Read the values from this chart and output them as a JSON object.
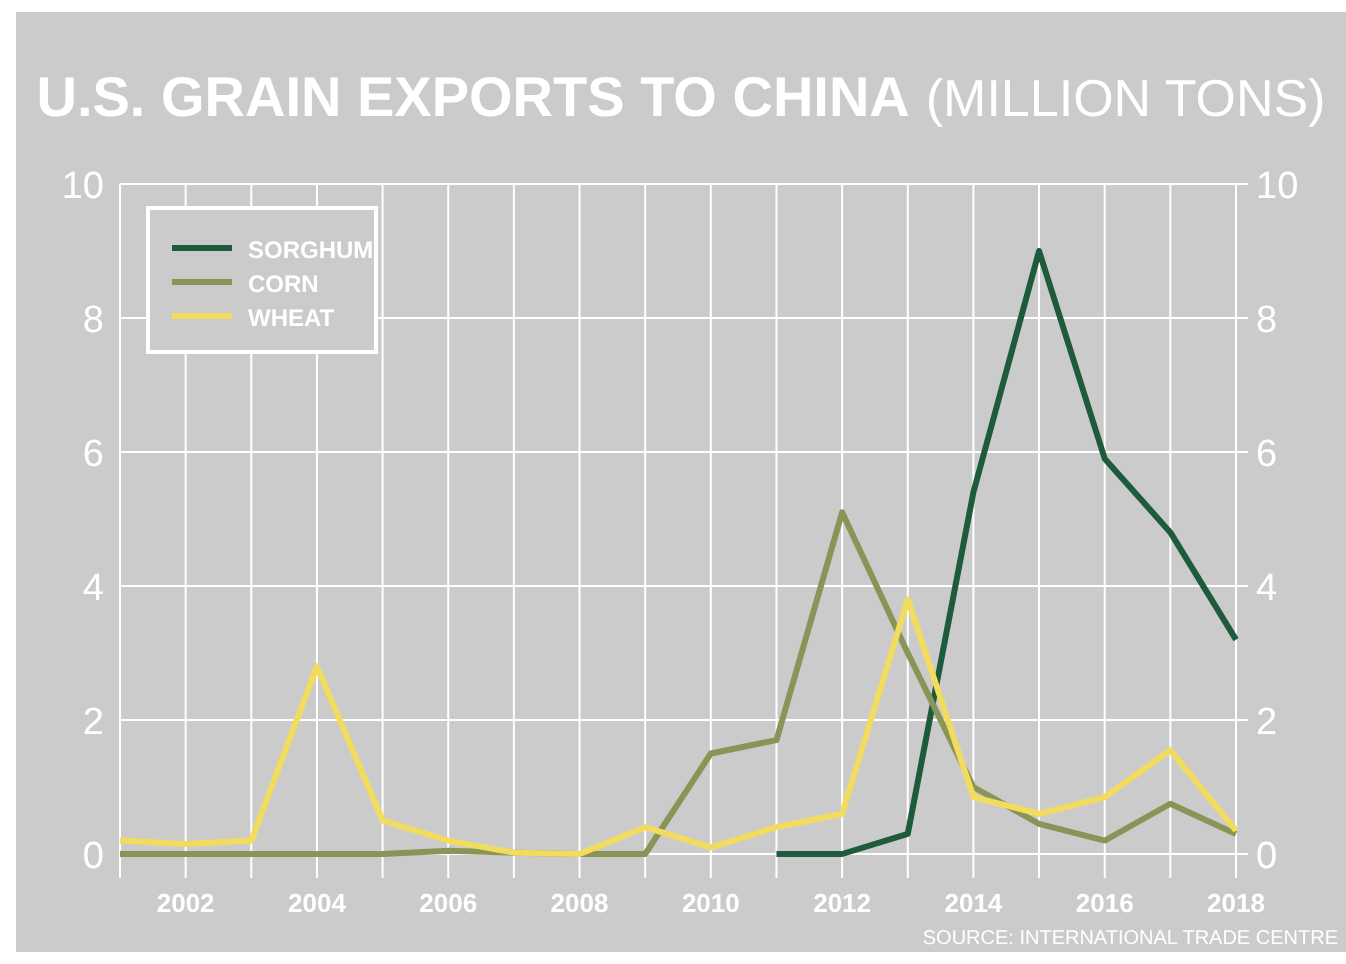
{
  "chart_data": {
    "type": "line",
    "title": "U.S. GRAIN EXPORTS TO CHINA",
    "subtitle": "(MILLION TONS)",
    "annotations": [
      "SOURCE: INTERNATIONAL TRADE CENTRE"
    ],
    "x": [
      2001,
      2002,
      2003,
      2004,
      2005,
      2006,
      2007,
      2008,
      2009,
      2010,
      2011,
      2012,
      2013,
      2014,
      2015,
      2016,
      2017,
      2018
    ],
    "series": [
      {
        "name": "SORGHUM",
        "color": "#1e5a3c",
        "values": [
          null,
          null,
          null,
          null,
          null,
          null,
          null,
          null,
          null,
          null,
          0,
          0,
          0.3,
          5.4,
          9.0,
          5.9,
          4.8,
          3.2
        ]
      },
      {
        "name": "CORN",
        "color": "#8a9456",
        "values": [
          0,
          0,
          0,
          0,
          0,
          0.05,
          0.02,
          0,
          0,
          1.5,
          1.7,
          5.1,
          3.0,
          1.0,
          0.45,
          0.2,
          0.75,
          0.3
        ]
      },
      {
        "name": "WHEAT",
        "color": "#f2dc5d",
        "values": [
          0.2,
          0.15,
          0.2,
          2.8,
          0.5,
          0.2,
          0.02,
          0,
          0.4,
          0.1,
          0.4,
          0.6,
          3.8,
          0.85,
          0.6,
          0.85,
          1.55,
          0.35
        ]
      }
    ],
    "xlim": [
      2001,
      2018
    ],
    "xticks": [
      {
        "value": 2001,
        "label": null
      },
      2002,
      {
        "value": 2003,
        "label": null
      },
      2004,
      {
        "value": 2005,
        "label": null
      },
      2006,
      {
        "value": 2007,
        "label": null
      },
      2008,
      {
        "value": 2009,
        "label": null
      },
      2010,
      {
        "value": 2011,
        "label": null
      },
      2012,
      {
        "value": 2013,
        "label": null
      },
      2014,
      {
        "value": 2015,
        "label": null
      },
      2016,
      {
        "value": 2017,
        "label": null
      },
      2018
    ],
    "ylim": [
      0,
      10
    ],
    "yticks": [
      0,
      2,
      4,
      6,
      8,
      10
    ],
    "y2lim": [
      0,
      10
    ],
    "y2ticks": [
      0,
      2,
      4,
      6,
      8,
      10
    ],
    "grid": true,
    "legend": "top left",
    "line_style": "solid",
    "marker": "none"
  }
}
